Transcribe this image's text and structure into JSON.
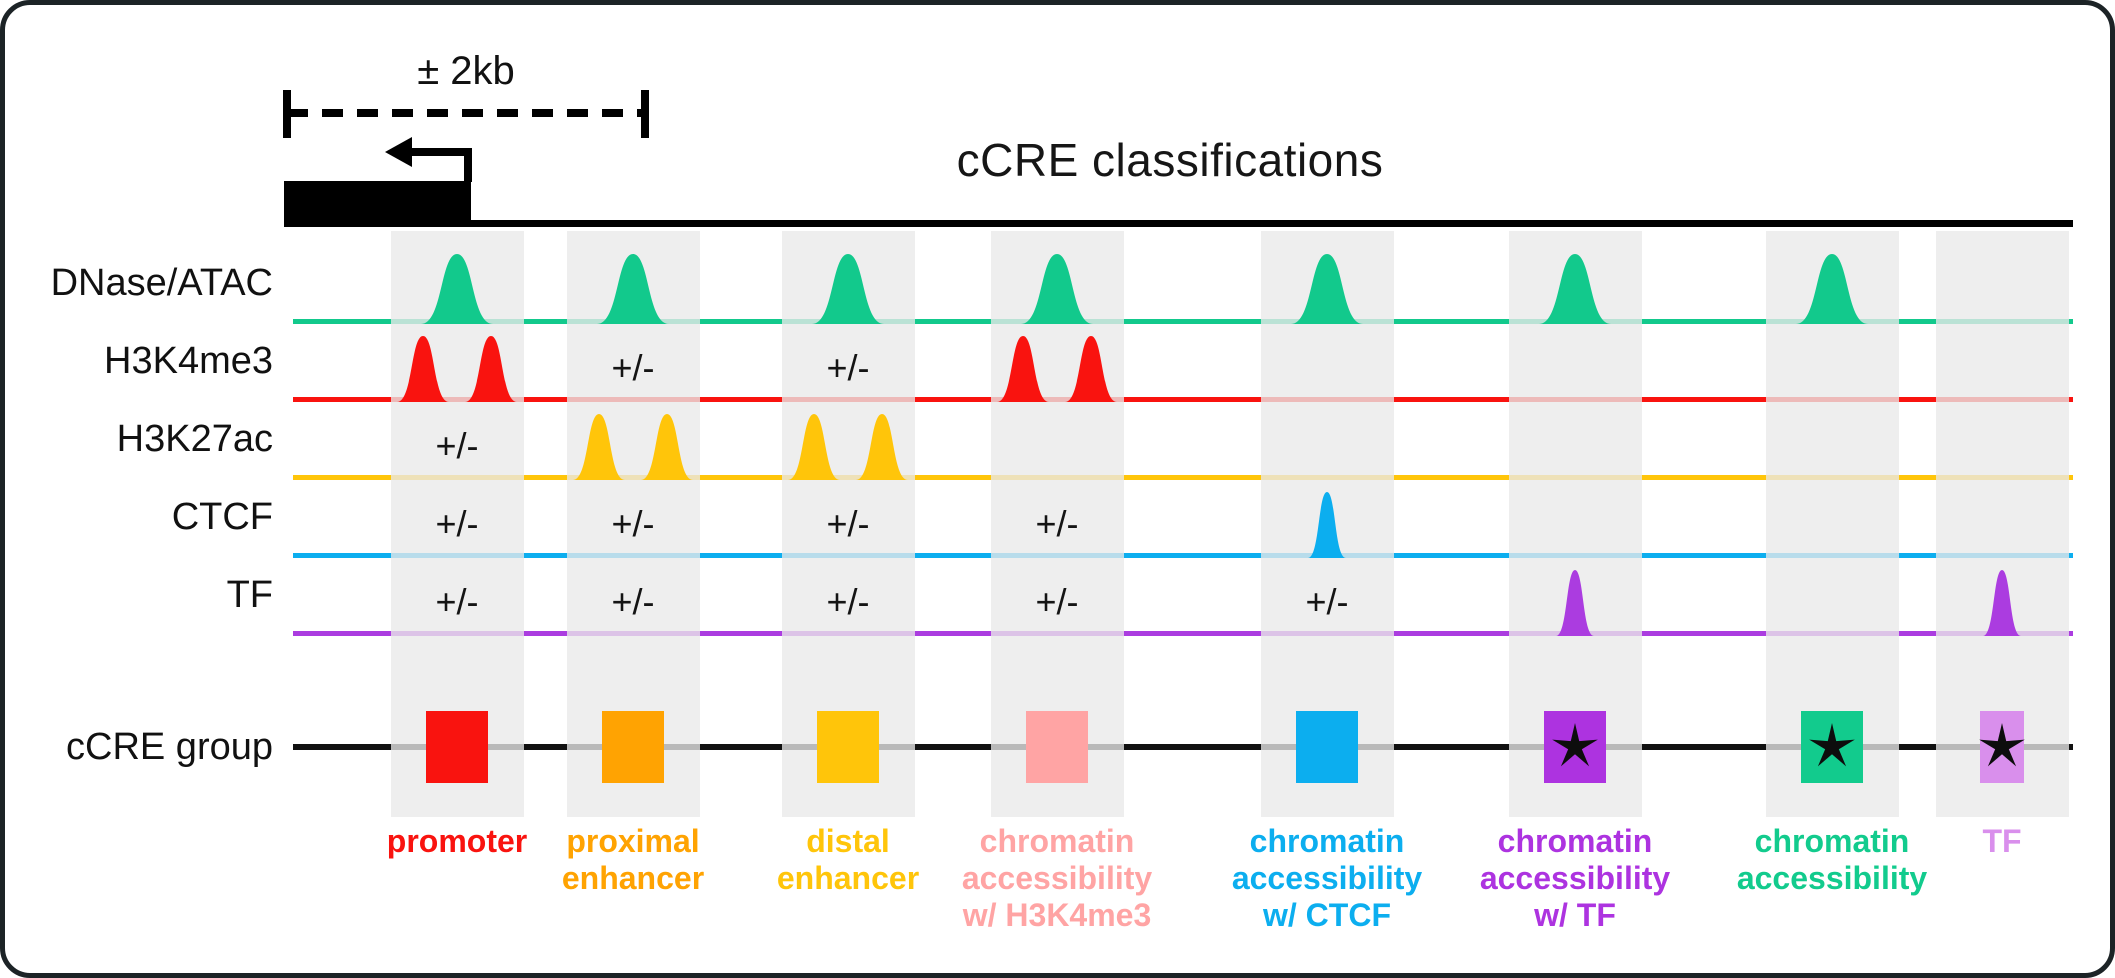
{
  "figure": {
    "title": "cCRE classifications",
    "scale_label": "± 2kb",
    "plus_minus": "+/-"
  },
  "rows": [
    {
      "id": "dnase",
      "label": "DNase/ATAC",
      "color": "#12c98c"
    },
    {
      "id": "h3k4me3",
      "label": "H3K4me3",
      "color": "#f9130f"
    },
    {
      "id": "h3k27ac",
      "label": "H3K27ac",
      "color": "#ffc50a"
    },
    {
      "id": "ctcf",
      "label": "CTCF",
      "color": "#0caeef"
    },
    {
      "id": "tf",
      "label": "TF",
      "color": "#ab3ce0"
    }
  ],
  "ccre_row": {
    "label": "cCRE group",
    "color": "#111111"
  },
  "columns": [
    {
      "id": "promoter",
      "color": "#f9130f",
      "star": false,
      "dotted": false,
      "narrow": false,
      "label_lines": [
        "promoter"
      ],
      "signals": {
        "dnase": "peak",
        "h3k4me3": "double",
        "h3k27ac": "pm",
        "ctcf": "pm",
        "tf": "pm"
      }
    },
    {
      "id": "proximal-enhancer",
      "color": "#ffa302",
      "star": false,
      "dotted": false,
      "narrow": false,
      "label_lines": [
        "proximal",
        "enhancer"
      ],
      "signals": {
        "dnase": "peak",
        "h3k4me3": "pm",
        "h3k27ac": "double",
        "ctcf": "pm",
        "tf": "pm"
      }
    },
    {
      "id": "distal-enhancer",
      "color": "#ffc50a",
      "star": false,
      "dotted": false,
      "narrow": false,
      "label_lines": [
        "distal",
        "enhancer"
      ],
      "signals": {
        "dnase": "peak",
        "h3k4me3": "pm",
        "h3k27ac": "double",
        "ctcf": "pm",
        "tf": "pm"
      }
    },
    {
      "id": "chromatin-accessibility-h3k4me3",
      "color": "#ffa4a4",
      "star": false,
      "dotted": true,
      "narrow": false,
      "label_lines": [
        "chromatin",
        "accessibility",
        "w/ H3K4me3"
      ],
      "signals": {
        "dnase": "peak",
        "h3k4me3": "double",
        "h3k27ac": "none",
        "ctcf": "pm",
        "tf": "pm"
      }
    },
    {
      "id": "chromatin-accessibility-ctcf",
      "color": "#0caeef",
      "star": false,
      "dotted": false,
      "narrow": false,
      "label_lines": [
        "chromatin",
        "accessibility",
        "w/ CTCF"
      ],
      "signals": {
        "dnase": "peak",
        "h3k4me3": "none",
        "h3k27ac": "none",
        "ctcf": "peak",
        "tf": "pm"
      }
    },
    {
      "id": "chromatin-accessibility-tf",
      "color": "#ad33e0",
      "star": true,
      "dotted": false,
      "narrow": false,
      "label_lines": [
        "chromatin",
        "accessibility",
        "w/ TF"
      ],
      "signals": {
        "dnase": "peak",
        "h3k4me3": "none",
        "h3k27ac": "none",
        "ctcf": "none",
        "tf": "peak"
      }
    },
    {
      "id": "chromatin-accessibility",
      "color": "#12cb8d",
      "star": true,
      "dotted": false,
      "narrow": false,
      "label_lines": [
        "chromatin",
        "accessibility"
      ],
      "signals": {
        "dnase": "peak",
        "h3k4me3": "none",
        "h3k27ac": "none",
        "ctcf": "none",
        "tf": "none"
      }
    },
    {
      "id": "tf-group",
      "color": "#d98fec",
      "star": true,
      "dotted": false,
      "narrow": true,
      "label_lines": [
        "TF"
      ],
      "signals": {
        "dnase": "none",
        "h3k4me3": "none",
        "h3k27ac": "none",
        "ctcf": "none",
        "tf": "peak"
      }
    }
  ]
}
